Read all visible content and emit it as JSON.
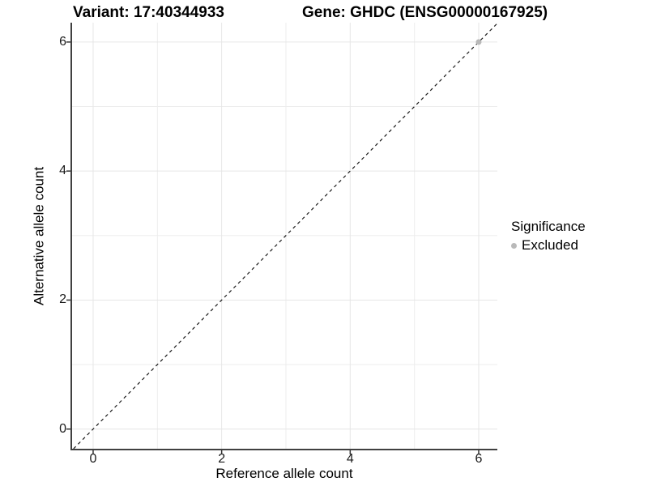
{
  "titles": {
    "variant": "Variant: 17:40344933",
    "gene": "Gene: GHDC (ENSG00000167925)"
  },
  "chart_data": {
    "type": "scatter",
    "title_left": "Variant: 17:40344933",
    "title_right": "Gene: GHDC (ENSG00000167925)",
    "xlabel": "Reference allele count",
    "ylabel": "Alternative allele count",
    "xlim": [
      -0.34,
      6.29
    ],
    "ylim": [
      -0.305,
      6.3
    ],
    "x_ticks": [
      0,
      2,
      4,
      6
    ],
    "y_ticks": [
      0,
      2,
      4,
      6
    ],
    "x_minor_gridlines": [
      1,
      3,
      5
    ],
    "y_minor_gridlines": [
      1,
      3,
      5
    ],
    "grid": true,
    "legend_position": "right",
    "legend_title": "Significance",
    "reference_line": {
      "type": "identity-diagonal",
      "slope": 1,
      "intercept": 0,
      "style": "dashed"
    },
    "series": [
      {
        "name": "Excluded",
        "color": "#b9b9b9",
        "points": [
          {
            "x": 6,
            "y": 6
          }
        ]
      }
    ]
  },
  "colors": {
    "background": "#ffffff",
    "grid_major": "#e6e6e6",
    "grid_minor": "#ededed",
    "axis_line": "#404040",
    "tick_mark": "#333333",
    "dashed_line": "#1a1a1a",
    "excluded_point": "#b9b9b9",
    "text": "#000000"
  }
}
